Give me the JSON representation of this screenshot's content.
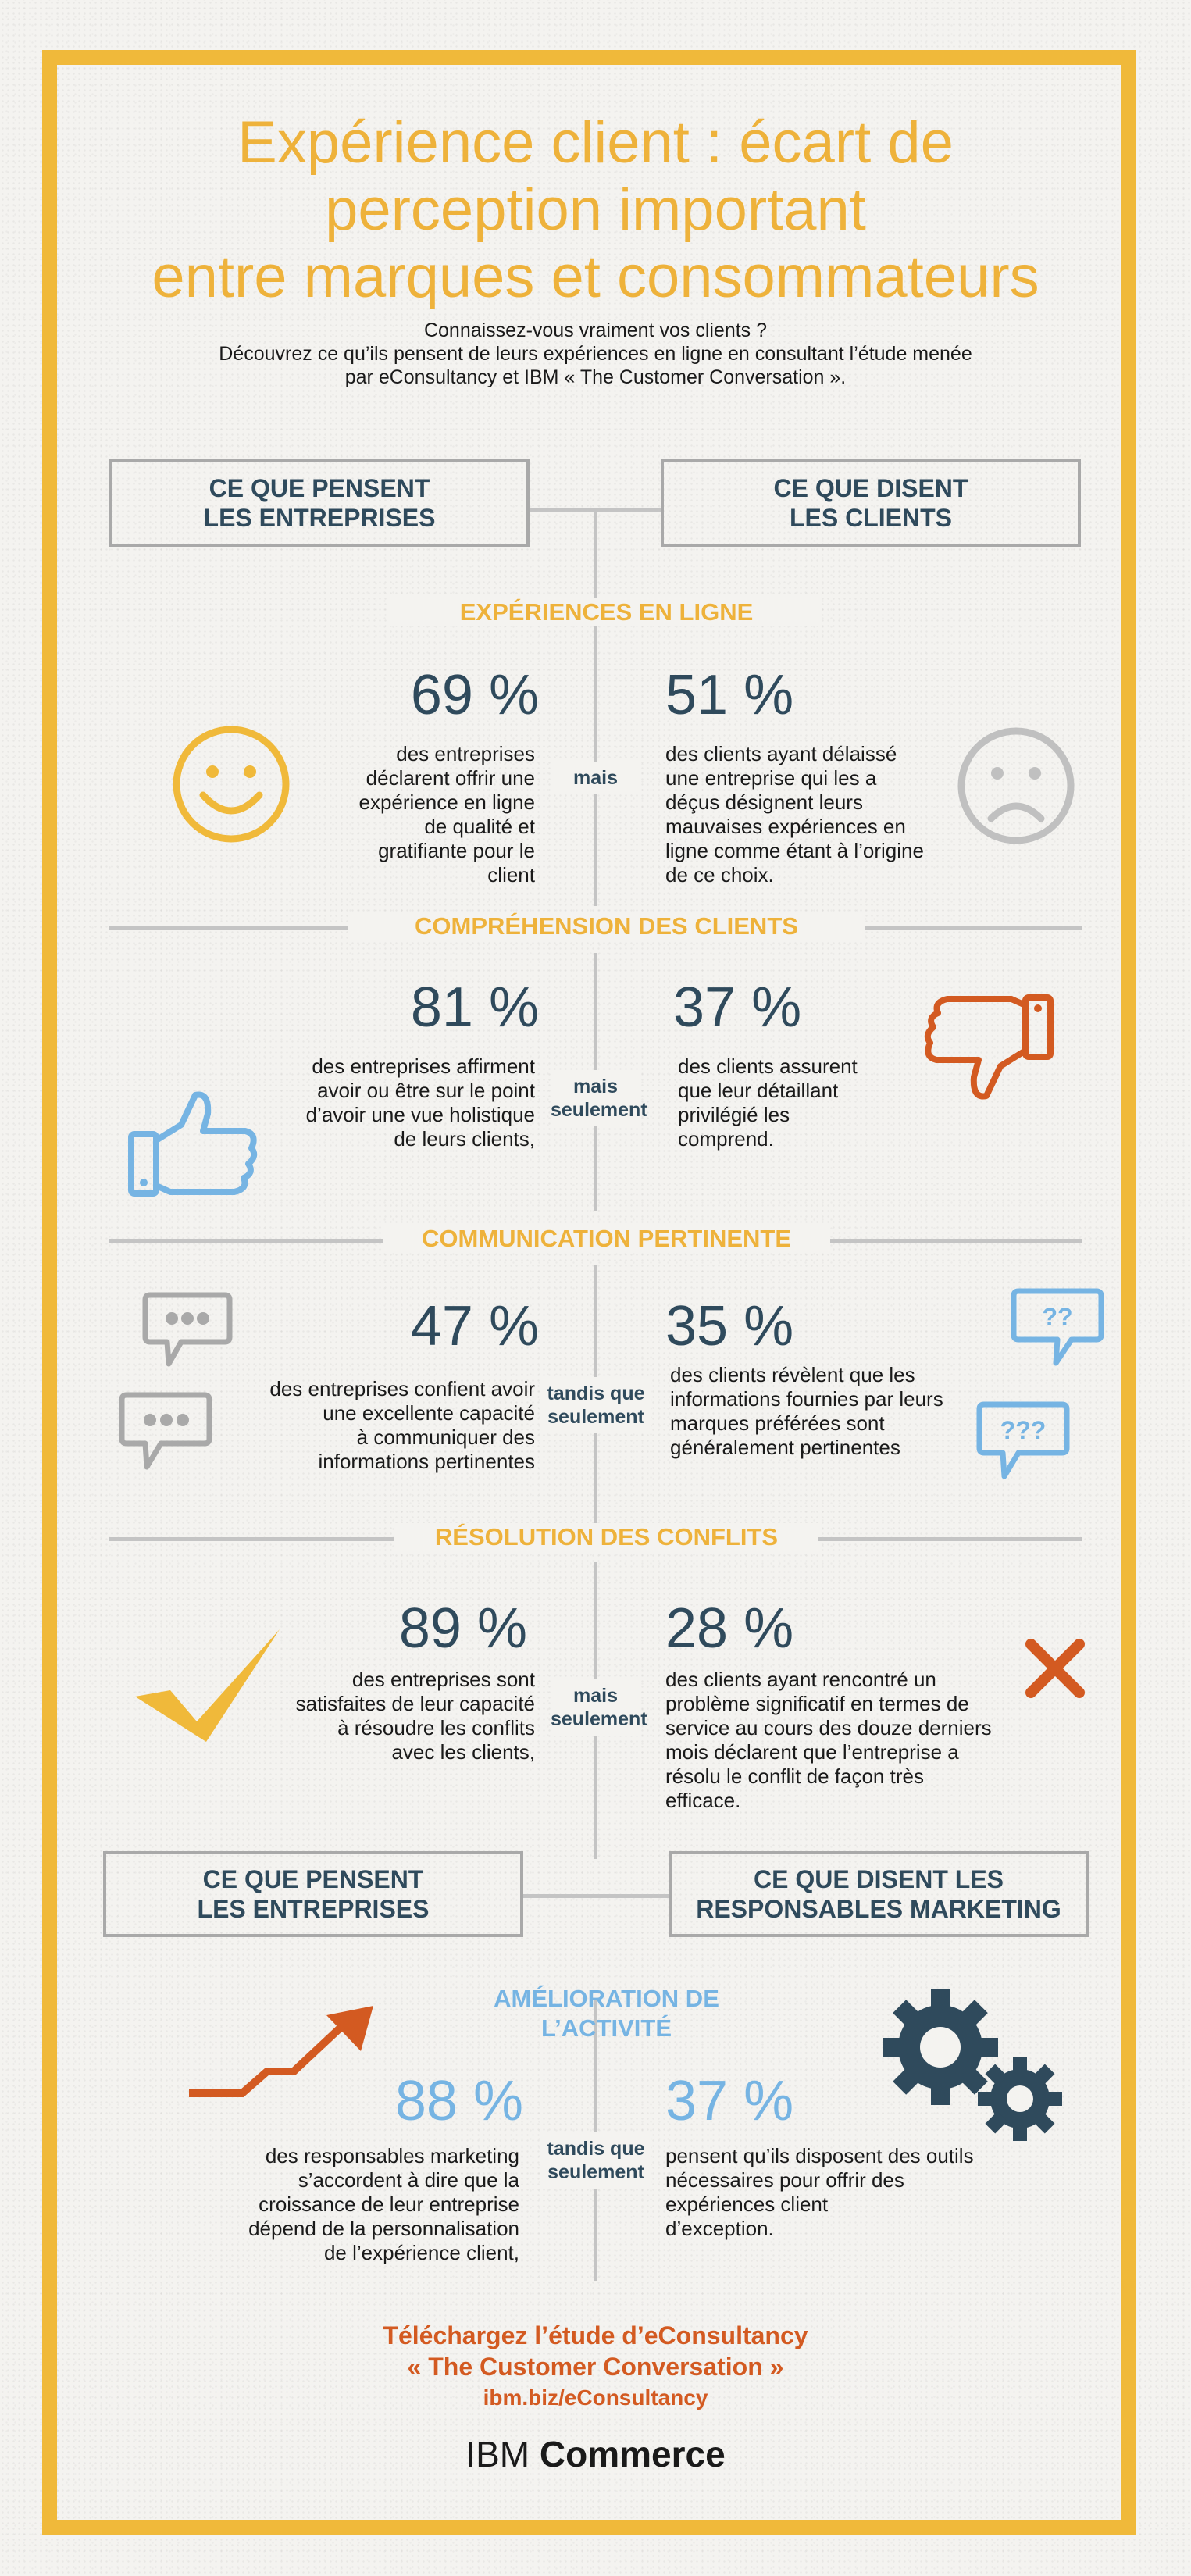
{
  "title": {
    "line1": "Expérience client : écart de",
    "line2": "perception important",
    "line3": "entre marques et consommateurs"
  },
  "intro": {
    "line1": "Connaissez-vous vraiment vos clients ?",
    "line2": "Découvrez ce qu’ils pensent de leurs expériences en ligne en consultant l’étude menée",
    "line3": "par eConsultancy et IBM « The Customer Conversation »."
  },
  "headers_top": {
    "left_line1": "CE QUE PENSENT",
    "left_line2": "LES ENTREPRISES",
    "right_line1": "CE QUE DISENT",
    "right_line2": "LES CLIENTS"
  },
  "sections": [
    {
      "title": "EXPÉRIENCES EN LIGNE",
      "left_pct": "69 %",
      "left_lines": [
        "des entreprises",
        "déclarent offrir une",
        "expérience en ligne",
        "de qualité et",
        "gratifiante pour le",
        "client"
      ],
      "conj_lines": [
        "mais"
      ],
      "right_pct": "51 %",
      "right_lines": [
        "des clients ayant délaissé",
        "une entreprise qui les a",
        "déçus désignent leurs",
        "mauvaises expériences en",
        "ligne comme étant à l’origine",
        "de ce choix."
      ]
    },
    {
      "title": "COMPRÉHENSION DES CLIENTS",
      "left_pct": "81 %",
      "left_lines": [
        "des entreprises affirment",
        "avoir ou être sur le point",
        "d’avoir une vue holistique",
        "de leurs clients,"
      ],
      "conj_lines": [
        "mais",
        "seulement"
      ],
      "right_pct": "37 %",
      "right_lines": [
        "des clients assurent",
        "que leur détaillant",
        "privilégié les",
        "comprend."
      ]
    },
    {
      "title": "COMMUNICATION PERTINENTE",
      "left_pct": "47 %",
      "left_lines": [
        "des entreprises confient avoir",
        "une excellente capacité",
        "à communiquer des",
        "informations pertinentes"
      ],
      "conj_lines": [
        "tandis que",
        "seulement"
      ],
      "right_pct": "35 %",
      "right_lines": [
        "des clients révèlent que les",
        "informations fournies par leurs",
        "marques préférées sont",
        "généralement pertinentes"
      ]
    },
    {
      "title": "RÉSOLUTION DES CONFLITS",
      "left_pct": "89 %",
      "left_lines": [
        "des entreprises sont",
        "satisfaites de leur capacité",
        "à résoudre les conflits",
        "avec les clients,"
      ],
      "conj_lines": [
        "mais",
        "seulement"
      ],
      "right_pct": "28 %",
      "right_lines": [
        "des clients ayant rencontré un",
        "problème significatif en termes de",
        "service au cours des douze derniers",
        "mois déclarent que l’entreprise a",
        "résolu le conflit de façon très",
        "efficace."
      ]
    }
  ],
  "headers_bottom": {
    "left_line1": "CE QUE PENSENT",
    "left_line2": "LES ENTREPRISES",
    "right_line1": "CE QUE DISENT LES",
    "right_line2": "RESPONSABLES MARKETING"
  },
  "activity": {
    "title_line1": "AMÉLIORATION DE",
    "title_line2": "L’ACTIVITÉ",
    "left_pct": "88 %",
    "left_lines": [
      "des responsables marketing",
      "s’accordent à dire que la",
      "croissance de leur entreprise",
      "dépend de la personnalisation",
      "de l’expérience client,"
    ],
    "conj_lines": [
      "tandis que",
      "seulement"
    ],
    "right_pct": "37 %",
    "right_lines": [
      "pensent qu’ils disposent des outils",
      "nécessaires pour offrir des",
      "expériences client",
      "d’exception."
    ]
  },
  "cta": {
    "line1": "Téléchargez l’étude d’eConsultancy",
    "line2": "« The Customer Conversation »",
    "link": "ibm.biz/eConsultancy"
  },
  "logo": {
    "brand": "IBM",
    "product": "Commerce"
  },
  "colors": {
    "accent": "#f0b93a",
    "navy": "#2f4a5c",
    "blue": "#76b4e3",
    "orange": "#d35a21",
    "grey": "#a9a9a9"
  },
  "icons": [
    "smiley-icon",
    "sad-face-icon",
    "thumbs-up-icon",
    "thumbs-down-icon",
    "speech-bubble-dots-icon",
    "speech-bubble-question-icon",
    "checkmark-icon",
    "cross-icon",
    "growth-arrow-icon",
    "gears-icon"
  ]
}
